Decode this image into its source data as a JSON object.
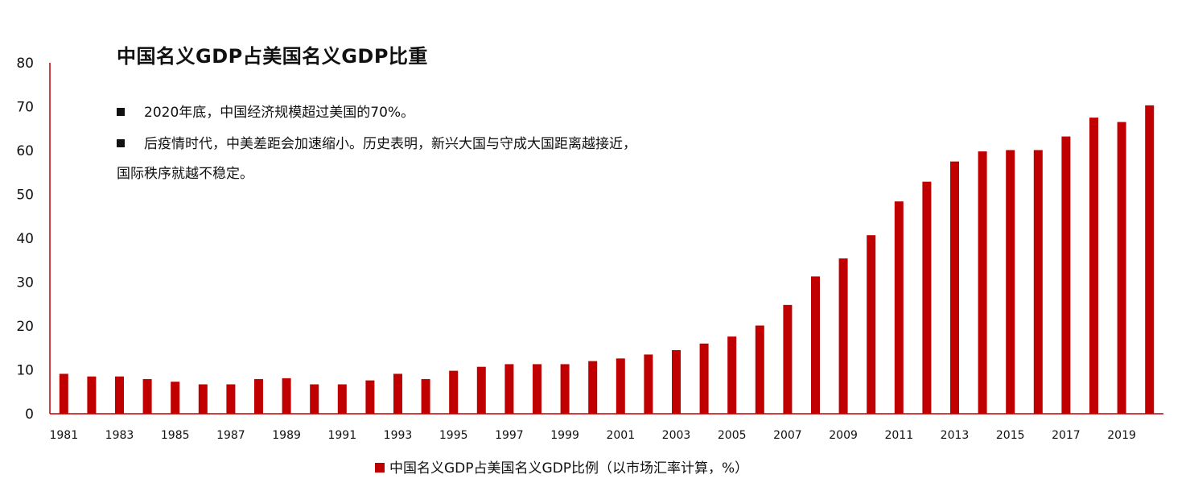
{
  "chart_data": {
    "type": "bar",
    "title": "中国名义GDP占美国名义GDP比重",
    "notes": [
      "2020年底，中国经济规模超过美国的70%。",
      "后疫情时代，中美差距会加速缩小。历史表明，新兴大国与守成大国距离越接近，",
      "国际秩序就越不稳定。"
    ],
    "legend": "中国名义GDP占美国名义GDP比例（以市场汇率计算，%）",
    "categories": [
      "1981",
      "1982",
      "1983",
      "1984",
      "1985",
      "1986",
      "1987",
      "1988",
      "1989",
      "1990",
      "1991",
      "1992",
      "1993",
      "1994",
      "1995",
      "1996",
      "1997",
      "1998",
      "1999",
      "2000",
      "2001",
      "2002",
      "2003",
      "2004",
      "2005",
      "2006",
      "2007",
      "2008",
      "2009",
      "2010",
      "2011",
      "2012",
      "2013",
      "2014",
      "2015",
      "2016",
      "2017",
      "2018",
      "2019",
      "2020"
    ],
    "x_tick_labels": [
      "1981",
      "1983",
      "1985",
      "1987",
      "1989",
      "1991",
      "1993",
      "1995",
      "1997",
      "1999",
      "2001",
      "2003",
      "2005",
      "2007",
      "2009",
      "2011",
      "2013",
      "2015",
      "2017",
      "2019"
    ],
    "values": [
      9.1,
      8.5,
      8.5,
      7.9,
      7.3,
      6.7,
      6.7,
      7.9,
      8.1,
      6.7,
      6.7,
      7.6,
      9.1,
      7.9,
      9.8,
      10.7,
      11.3,
      11.3,
      11.3,
      12.0,
      12.6,
      13.5,
      14.5,
      16.0,
      17.6,
      20.1,
      24.8,
      31.3,
      35.4,
      40.7,
      48.4,
      52.9,
      57.5,
      59.8,
      60.1,
      60.1,
      63.2,
      67.5,
      66.5,
      70.3
    ],
    "ylim": [
      0,
      80
    ],
    "yticks": [
      0,
      10,
      20,
      30,
      40,
      50,
      60,
      70,
      80
    ],
    "xlabel": "",
    "ylabel": "",
    "colors": {
      "bar": "#c00000",
      "axis": "#c00000"
    }
  }
}
